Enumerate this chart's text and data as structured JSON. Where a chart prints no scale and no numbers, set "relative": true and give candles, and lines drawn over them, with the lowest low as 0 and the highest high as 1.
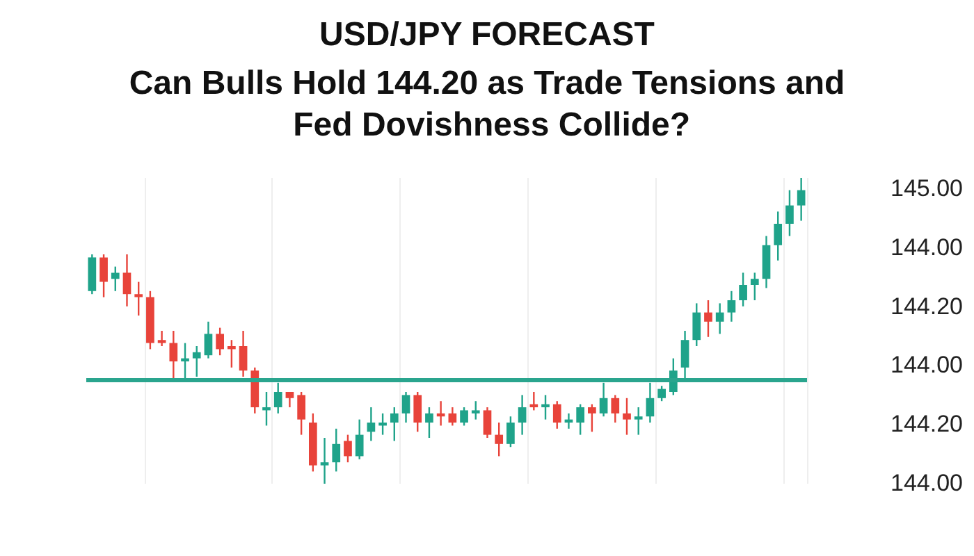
{
  "chart_data": {
    "type": "candlestick",
    "title": "USD/JPY FORECAST",
    "subtitle": "Can Bulls Hold 144.20 as Trade Tensions and Fed Dovishness Collide?",
    "categories": [
      null,
      null,
      null,
      null,
      null,
      null,
      null,
      null,
      null,
      null,
      null,
      null,
      null,
      null,
      null,
      null,
      null,
      null,
      null,
      null,
      null,
      null,
      null,
      null,
      null,
      null,
      null,
      null,
      null,
      null,
      null,
      null,
      null,
      null,
      null,
      null,
      null,
      null,
      null,
      null,
      null,
      null,
      null,
      null,
      null,
      null,
      null,
      null,
      null,
      null,
      null,
      null,
      null,
      null,
      null,
      null,
      null,
      null,
      null,
      null,
      null,
      null
    ],
    "relative": true,
    "ohlc": [
      [
        0.63,
        0.75,
        0.62,
        0.74
      ],
      [
        0.74,
        0.75,
        0.61,
        0.66
      ],
      [
        0.67,
        0.71,
        0.63,
        0.69
      ],
      [
        0.69,
        0.75,
        0.58,
        0.62
      ],
      [
        0.62,
        0.66,
        0.55,
        0.61
      ],
      [
        0.61,
        0.63,
        0.44,
        0.46
      ],
      [
        0.47,
        0.5,
        0.45,
        0.46
      ],
      [
        0.46,
        0.5,
        0.34,
        0.4
      ],
      [
        0.4,
        0.46,
        0.34,
        0.41
      ],
      [
        0.41,
        0.45,
        0.35,
        0.43
      ],
      [
        0.42,
        0.53,
        0.41,
        0.49
      ],
      [
        0.49,
        0.51,
        0.42,
        0.44
      ],
      [
        0.45,
        0.47,
        0.38,
        0.44
      ],
      [
        0.45,
        0.5,
        0.35,
        0.37
      ],
      [
        0.37,
        0.38,
        0.23,
        0.25
      ],
      [
        0.24,
        0.3,
        0.19,
        0.25
      ],
      [
        0.25,
        0.33,
        0.23,
        0.3
      ],
      [
        0.3,
        0.3,
        0.25,
        0.28
      ],
      [
        0.29,
        0.3,
        0.16,
        0.21
      ],
      [
        0.2,
        0.23,
        0.04,
        0.06
      ],
      [
        0.06,
        0.15,
        0,
        0.07
      ],
      [
        0.07,
        0.18,
        0.04,
        0.13
      ],
      [
        0.14,
        0.16,
        0.07,
        0.09
      ],
      [
        0.09,
        0.21,
        0.08,
        0.16
      ],
      [
        0.17,
        0.25,
        0.14,
        0.2
      ],
      [
        0.19,
        0.23,
        0.16,
        0.2
      ],
      [
        0.2,
        0.25,
        0.14,
        0.23
      ],
      [
        0.23,
        0.3,
        0.2,
        0.29
      ],
      [
        0.29,
        0.3,
        0.17,
        0.2
      ],
      [
        0.2,
        0.25,
        0.15,
        0.23
      ],
      [
        0.23,
        0.27,
        0.19,
        0.22
      ],
      [
        0.23,
        0.25,
        0.19,
        0.2
      ],
      [
        0.2,
        0.25,
        0.19,
        0.24
      ],
      [
        0.23,
        0.27,
        0.21,
        0.24
      ],
      [
        0.24,
        0.25,
        0.15,
        0.16
      ],
      [
        0.16,
        0.2,
        0.09,
        0.13
      ],
      [
        0.13,
        0.22,
        0.12,
        0.2
      ],
      [
        0.2,
        0.29,
        0.16,
        0.25
      ],
      [
        0.26,
        0.3,
        0.24,
        0.25
      ],
      [
        0.25,
        0.29,
        0.21,
        0.26
      ],
      [
        0.26,
        0.27,
        0.18,
        0.2
      ],
      [
        0.2,
        0.23,
        0.18,
        0.21
      ],
      [
        0.2,
        0.26,
        0.16,
        0.25
      ],
      [
        0.25,
        0.26,
        0.17,
        0.23
      ],
      [
        0.23,
        0.33,
        0.22,
        0.28
      ],
      [
        0.28,
        0.29,
        0.2,
        0.23
      ],
      [
        0.23,
        0.28,
        0.16,
        0.21
      ],
      [
        0.21,
        0.25,
        0.16,
        0.22
      ],
      [
        0.22,
        0.33,
        0.2,
        0.28
      ],
      [
        0.28,
        0.32,
        0.27,
        0.31
      ],
      [
        0.3,
        0.41,
        0.29,
        0.37
      ],
      [
        0.38,
        0.5,
        0.34,
        0.47
      ],
      [
        0.47,
        0.59,
        0.45,
        0.56
      ],
      [
        0.56,
        0.6,
        0.48,
        0.53
      ],
      [
        0.53,
        0.59,
        0.49,
        0.56
      ],
      [
        0.56,
        0.63,
        0.53,
        0.6
      ],
      [
        0.6,
        0.69,
        0.58,
        0.65
      ],
      [
        0.65,
        0.69,
        0.6,
        0.67
      ],
      [
        0.67,
        0.81,
        0.64,
        0.78
      ],
      [
        0.78,
        0.89,
        0.73,
        0.85
      ],
      [
        0.85,
        0.96,
        0.81,
        0.91
      ],
      [
        0.91,
        1,
        0.86,
        0.96
      ]
    ],
    "colors": [
      "#1fa38a",
      "#e8433a",
      "#1fa38a",
      "#e8433a",
      "#e8433a",
      "#e8433a",
      "#e8433a",
      "#e8433a",
      "#1fa38a",
      "#1fa38a",
      "#1fa38a",
      "#e8433a",
      "#e8433a",
      "#e8433a",
      "#e8433a",
      "#1fa38a",
      "#1fa38a",
      "#e8433a",
      "#e8433a",
      "#e8433a",
      "#1fa38a",
      "#1fa38a",
      "#e8433a",
      "#1fa38a",
      "#1fa38a",
      "#1fa38a",
      "#1fa38a",
      "#1fa38a",
      "#e8433a",
      "#1fa38a",
      "#e8433a",
      "#e8433a",
      "#1fa38a",
      "#1fa38a",
      "#e8433a",
      "#e8433a",
      "#1fa38a",
      "#1fa38a",
      "#e8433a",
      "#1fa38a",
      "#e8433a",
      "#1fa38a",
      "#1fa38a",
      "#e8433a",
      "#1fa38a",
      "#e8433a",
      "#e8433a",
      "#1fa38a",
      "#1fa38a",
      "#1fa38a",
      "#1fa38a",
      "#1fa38a",
      "#1fa38a",
      "#e8433a",
      "#1fa38a",
      "#1fa38a",
      "#1fa38a",
      "#1fa38a",
      "#1fa38a",
      "#1fa38a",
      "#1fa38a",
      "#1fa38a"
    ],
    "annotations": [
      "145.00",
      "144.00",
      "144.20",
      "144.00",
      "144.20",
      "144.00"
    ],
    "ref_lines": [
      {
        "axis": "y",
        "value": 0.34,
        "color": "#2aa58e"
      }
    ],
    "grid": "x"
  }
}
